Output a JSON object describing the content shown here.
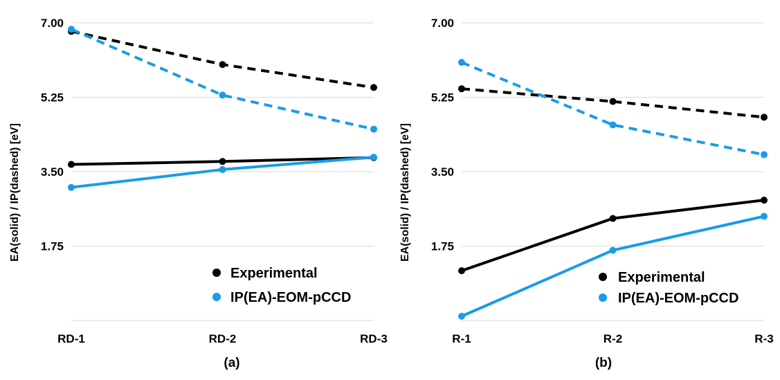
{
  "chart_data": [
    {
      "type": "line",
      "panel_label": "(a)",
      "ylabel": "EA(solid) / IP(dashed) [eV]",
      "categories": [
        "RD-1",
        "RD-2",
        "RD-3"
      ],
      "yticks": [
        "7.00",
        "5.25",
        "3.50",
        "1.75"
      ],
      "ylim": [
        0,
        7.0
      ],
      "legend_position": "bottom-right",
      "legend": [
        "Experimental",
        "IP(EA)-EOM-pCCD"
      ],
      "series": [
        {
          "name": "Experimental",
          "measure": "IP",
          "style": "dashed",
          "color": "#000000",
          "values": [
            6.8,
            6.02,
            5.48
          ]
        },
        {
          "name": "IP(EA)-EOM-pCCD",
          "measure": "IP",
          "style": "dashed",
          "color": "#1a9be8",
          "values": [
            6.85,
            5.3,
            4.5
          ]
        },
        {
          "name": "Experimental",
          "measure": "EA",
          "style": "solid",
          "color": "#000000",
          "values": [
            3.67,
            3.74,
            3.83
          ]
        },
        {
          "name": "IP(EA)-EOM-pCCD",
          "measure": "EA",
          "style": "solid",
          "color": "#1a9be8",
          "values": [
            3.13,
            3.55,
            3.84
          ]
        }
      ]
    },
    {
      "type": "line",
      "panel_label": "(b)",
      "ylabel": "EA(solid) / IP(dashed) [eV]",
      "categories": [
        "R-1",
        "R-2",
        "R-3"
      ],
      "yticks": [
        "7.00",
        "5.25",
        "3.50",
        "1.75"
      ],
      "ylim": [
        0,
        7.0
      ],
      "legend_position": "bottom-right",
      "legend": [
        "Experimental",
        "IP(EA)-EOM-pCCD"
      ],
      "series": [
        {
          "name": "Experimental",
          "measure": "IP",
          "style": "dashed",
          "color": "#000000",
          "values": [
            5.45,
            5.15,
            4.78
          ]
        },
        {
          "name": "IP(EA)-EOM-pCCD",
          "measure": "IP",
          "style": "dashed",
          "color": "#1a9be8",
          "values": [
            6.07,
            4.6,
            3.9
          ]
        },
        {
          "name": "Experimental",
          "measure": "EA",
          "style": "solid",
          "color": "#000000",
          "values": [
            1.17,
            2.4,
            2.83
          ]
        },
        {
          "name": "IP(EA)-EOM-pCCD",
          "measure": "EA",
          "style": "solid",
          "color": "#1a9be8",
          "values": [
            0.1,
            1.65,
            2.45
          ]
        }
      ]
    }
  ]
}
